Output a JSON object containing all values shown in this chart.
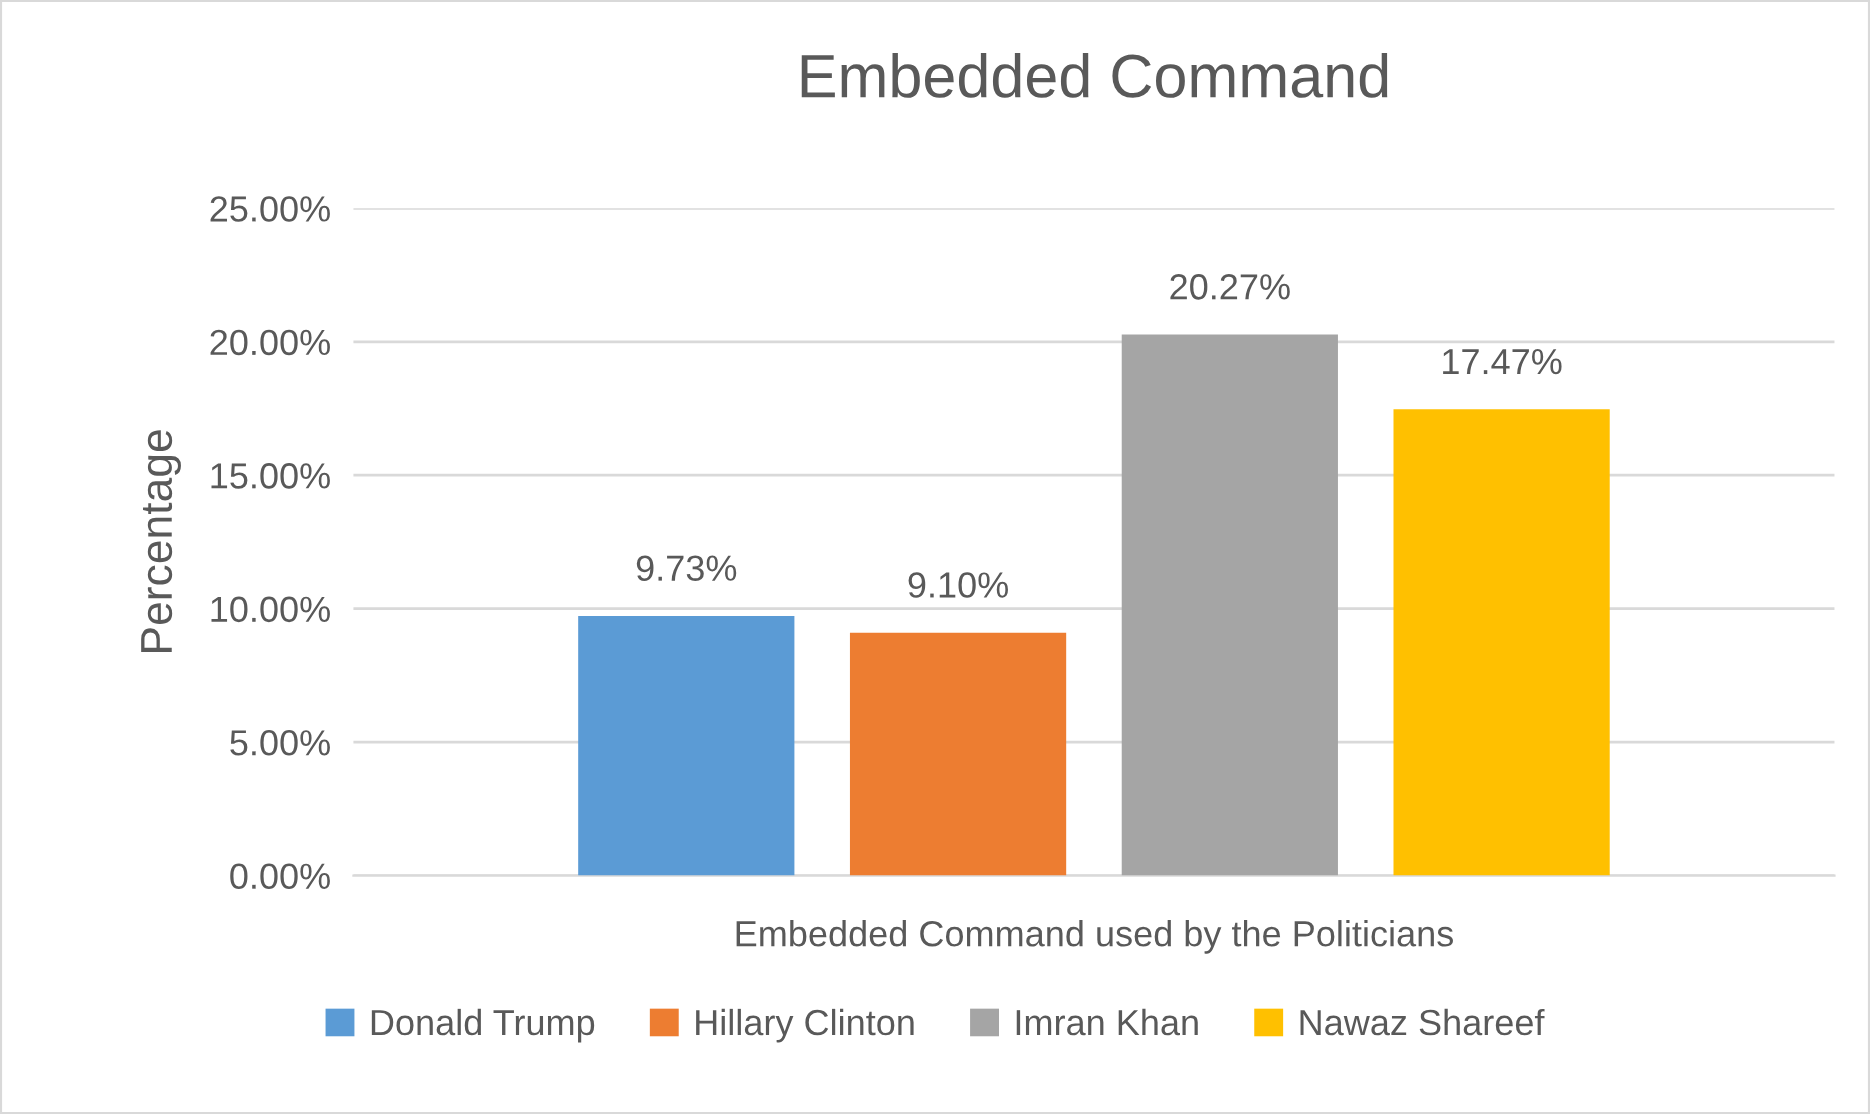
{
  "chart_data": {
    "type": "bar",
    "title": "Embedded Command",
    "xlabel": "Embedded Command used by the Politicians",
    "ylabel": "Percentage",
    "categories": [
      null
    ],
    "series": [
      {
        "name": "Donald Trump",
        "color": "#5b9bd5",
        "values": [
          9.73
        ],
        "value_labels": [
          "9.73%"
        ]
      },
      {
        "name": "Hillary Clinton",
        "color": "#ed7d31",
        "values": [
          9.1
        ],
        "value_labels": [
          "9.10%"
        ]
      },
      {
        "name": "Imran Khan",
        "color": "#a5a5a5",
        "values": [
          20.27
        ],
        "value_labels": [
          "20.27%"
        ]
      },
      {
        "name": "Nawaz Shareef",
        "color": "#ffc000",
        "values": [
          17.47
        ],
        "value_labels": [
          "17.47%"
        ]
      }
    ],
    "ylim": [
      0,
      25
    ],
    "yticks": [
      {
        "value": 0,
        "label": "0.00%"
      },
      {
        "value": 5,
        "label": "5.00%"
      },
      {
        "value": 10,
        "label": "10.00%"
      },
      {
        "value": 15,
        "label": "15.00%"
      },
      {
        "value": 20,
        "label": "20.00%"
      },
      {
        "value": 25,
        "label": "25.00%"
      }
    ],
    "grid": "y",
    "legend": "bottom"
  }
}
